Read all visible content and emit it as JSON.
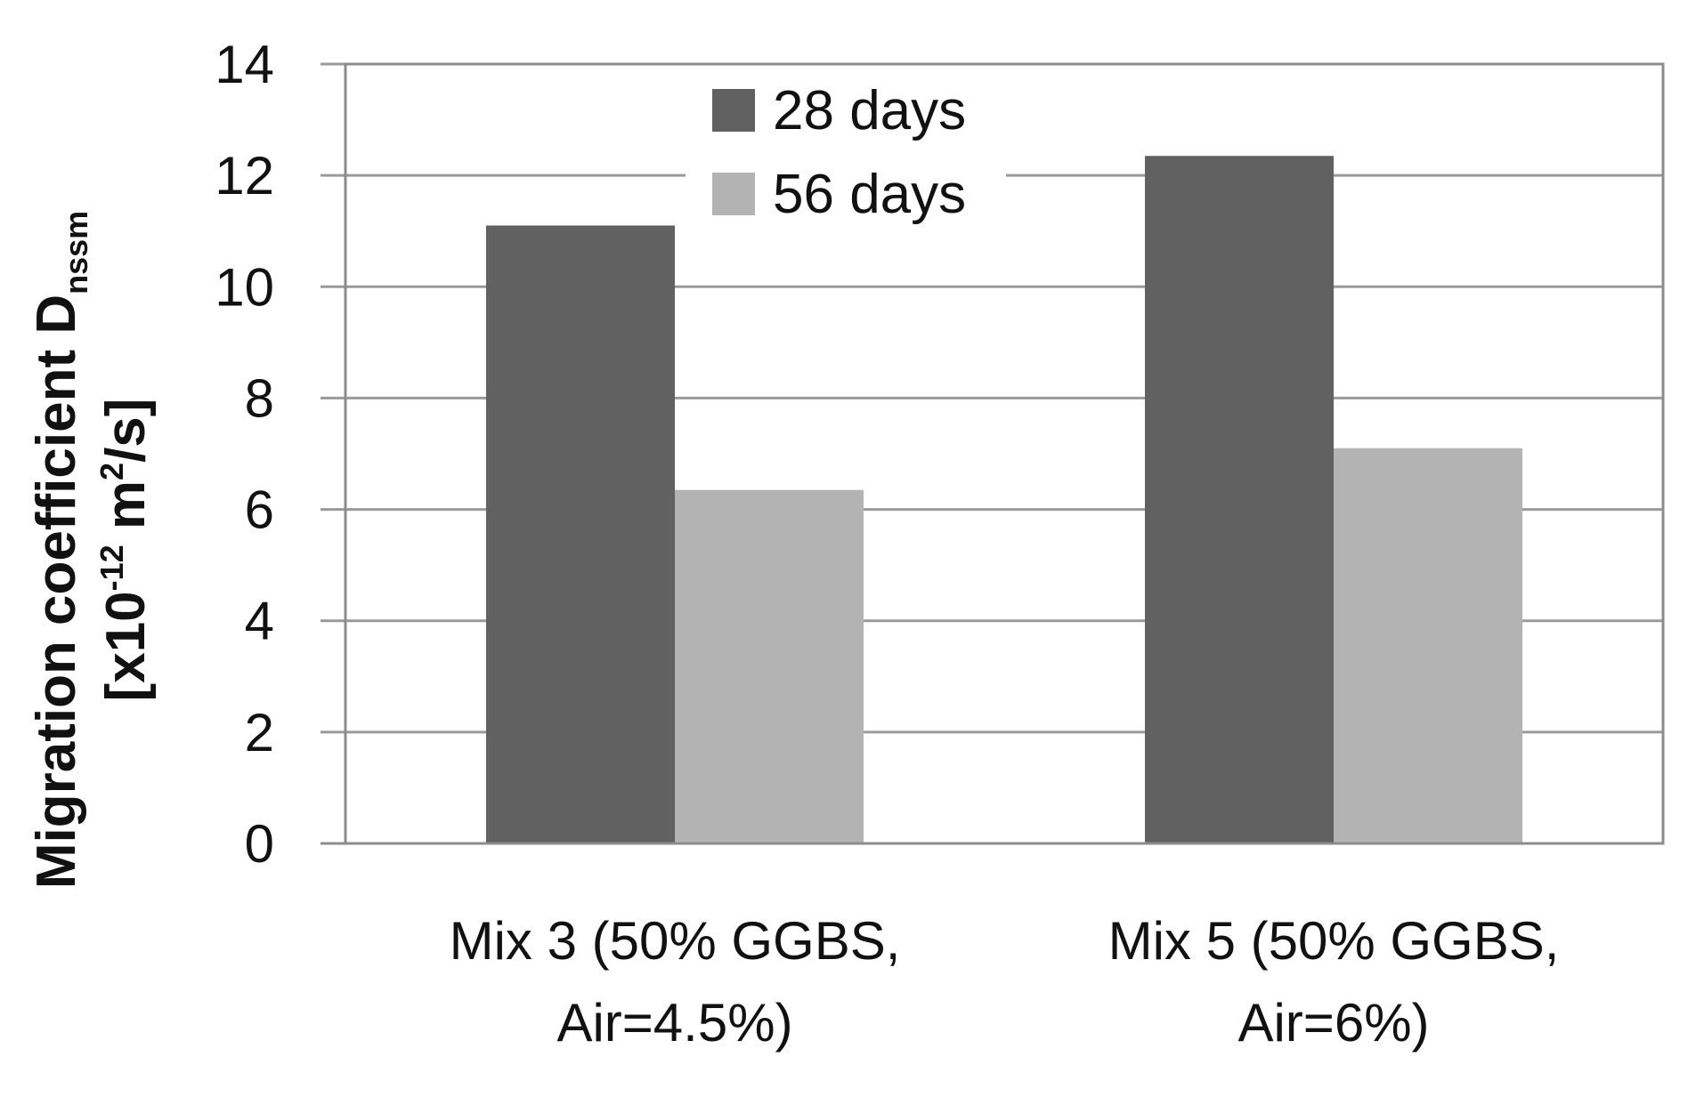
{
  "chart_data": {
    "type": "bar",
    "categories": [
      [
        "Mix 3 (50% GGBS,",
        "Air=4.5%)"
      ],
      [
        "Mix 5 (50% GGBS,",
        "Air=6%)"
      ]
    ],
    "series": [
      {
        "name": "28 days",
        "color": "#616161",
        "values": [
          11.1,
          12.35
        ]
      },
      {
        "name": "56 days",
        "color": "#b3b3b3",
        "values": [
          6.35,
          7.1
        ]
      }
    ],
    "ylabel_line1": "Migration coefficient D",
    "ylabel_line1_sub": "nssm",
    "ylabel_line2_a": "[x10",
    "ylabel_line2_sup": "-12",
    "ylabel_line2_b": " m",
    "ylabel_line2_sup2": "2",
    "ylabel_line2_c": "/s]",
    "ylim": [
      0,
      14
    ],
    "yticks": [
      0,
      2,
      4,
      6,
      8,
      10,
      12,
      14
    ],
    "grid": true,
    "legend_position": "top-center"
  }
}
